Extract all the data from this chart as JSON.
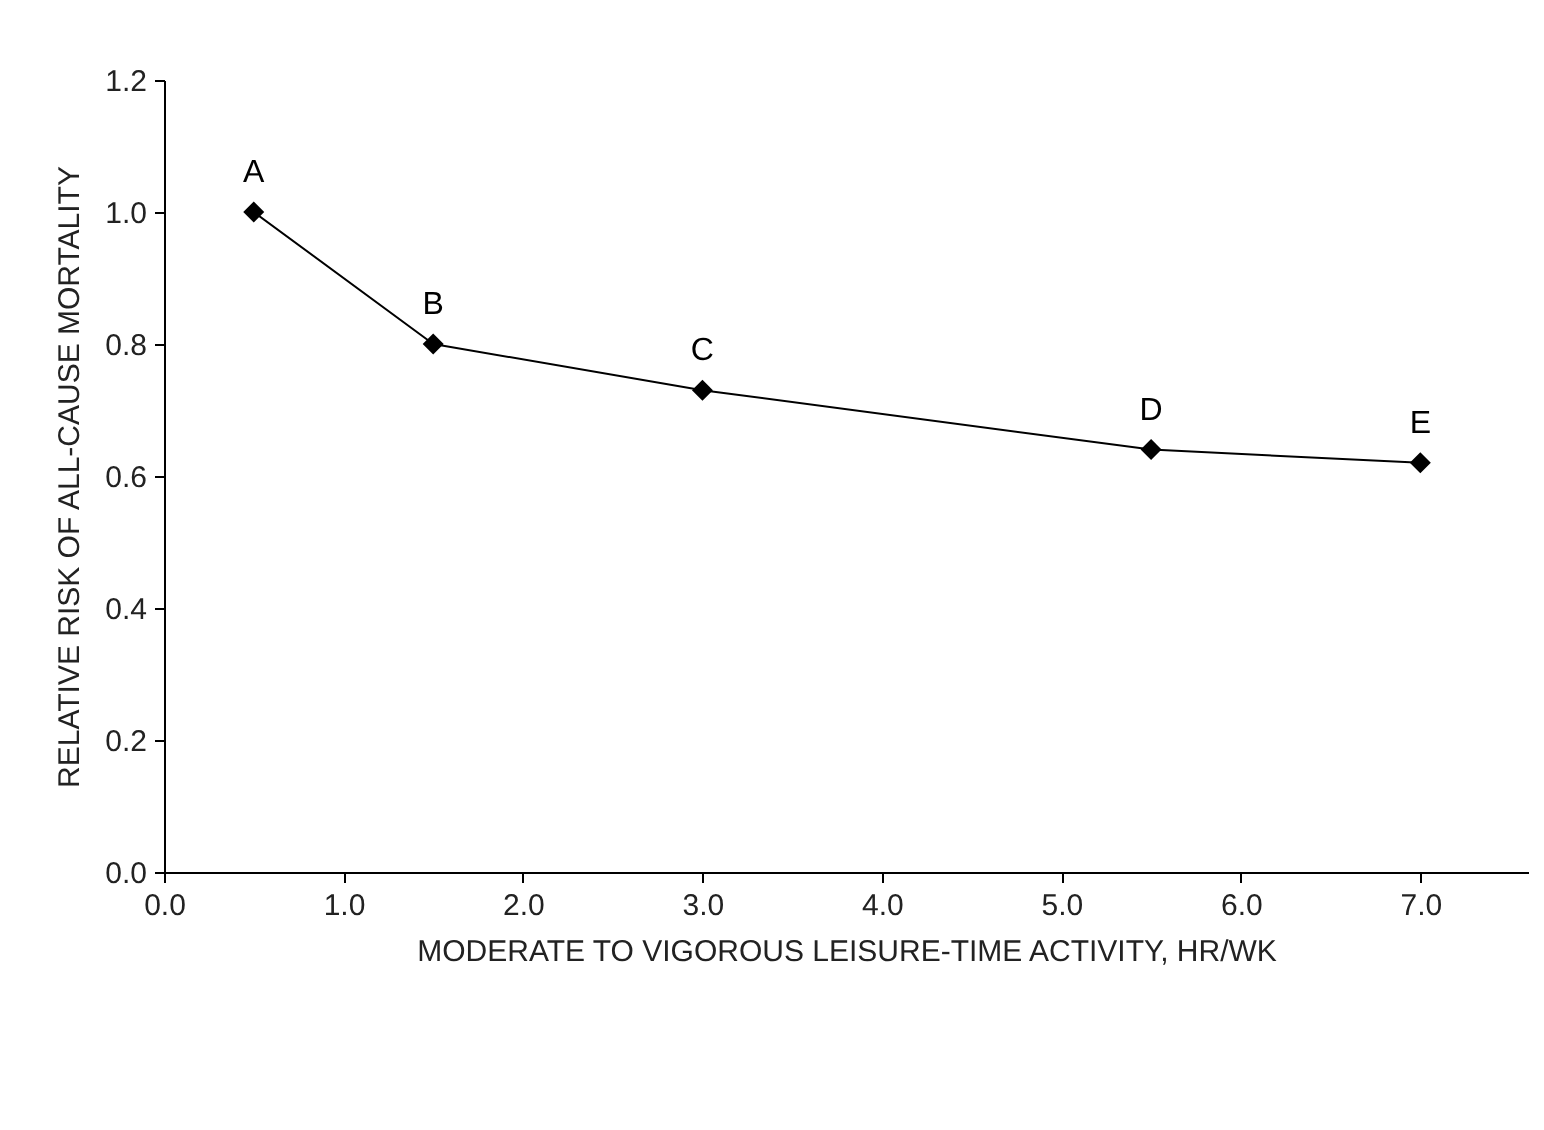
{
  "chart_data": {
    "type": "line",
    "xlabel": "MODERATE TO VIGOROUS LEISURE-TIME ACTIVITY, HR/WK",
    "ylabel": "RELATIVE RISK OF ALL-CAUSE MORTALITY",
    "x": [
      0.5,
      1.5,
      3.0,
      5.5,
      7.0
    ],
    "series": [
      {
        "color": "#000000",
        "values": [
          1.0,
          0.8,
          0.73,
          0.64,
          0.62
        ]
      }
    ],
    "marker": "diamond",
    "line_style": "solid",
    "grid": false,
    "xlim": [
      0,
      7.6
    ],
    "xticks": [
      {
        "value": 0,
        "label": "0.0"
      },
      {
        "value": 1,
        "label": "1.0"
      },
      {
        "value": 2,
        "label": "2.0"
      },
      {
        "value": 3,
        "label": "3.0"
      },
      {
        "value": 4,
        "label": "4.0"
      },
      {
        "value": 5,
        "label": "5.0"
      },
      {
        "value": 6,
        "label": "6.0"
      },
      {
        "value": 7,
        "label": "7.0"
      }
    ],
    "ylim": [
      0,
      1.2
    ],
    "yticks": [
      {
        "value": 0,
        "label": "0.0"
      },
      {
        "value": 0.2,
        "label": "0.2"
      },
      {
        "value": 0.4,
        "label": "0.4"
      },
      {
        "value": 0.6,
        "label": "0.6"
      },
      {
        "value": 0.8,
        "label": "0.8"
      },
      {
        "value": 1.0,
        "label": "1.0"
      },
      {
        "value": 1.2,
        "label": "1.2"
      }
    ],
    "annotations": [
      {
        "text": "A",
        "x": 0.5,
        "y": 1.0
      },
      {
        "text": "B",
        "x": 1.5,
        "y": 0.8
      },
      {
        "text": "C",
        "x": 3.0,
        "y": 0.73
      },
      {
        "text": "D",
        "x": 5.5,
        "y": 0.64
      },
      {
        "text": "E",
        "x": 7.0,
        "y": 0.62
      }
    ]
  }
}
